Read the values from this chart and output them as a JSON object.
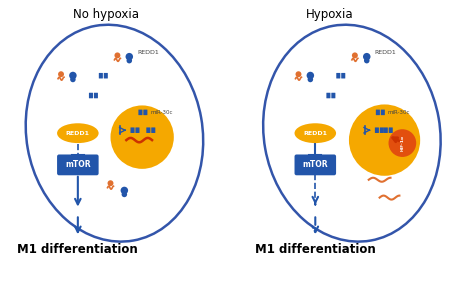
{
  "title_left": "No hypoxia",
  "title_right": "Hypoxia",
  "label_bottom": "M1 differentiation",
  "bg": "#FFFFFF",
  "cell_face": "#FFFFFF",
  "cell_edge": "#3355AA",
  "gold": "#F5A800",
  "blue": "#2255AA",
  "red": "#CC3300",
  "orange": "#E07030",
  "white": "#FFFFFF",
  "gray_text": "#444444",
  "title_fontsize": 8.5,
  "label_fontsize": 8.5,
  "redd1_fontsize": 4.5,
  "mtor_fontsize": 5.5,
  "small_fontsize": 4.5
}
